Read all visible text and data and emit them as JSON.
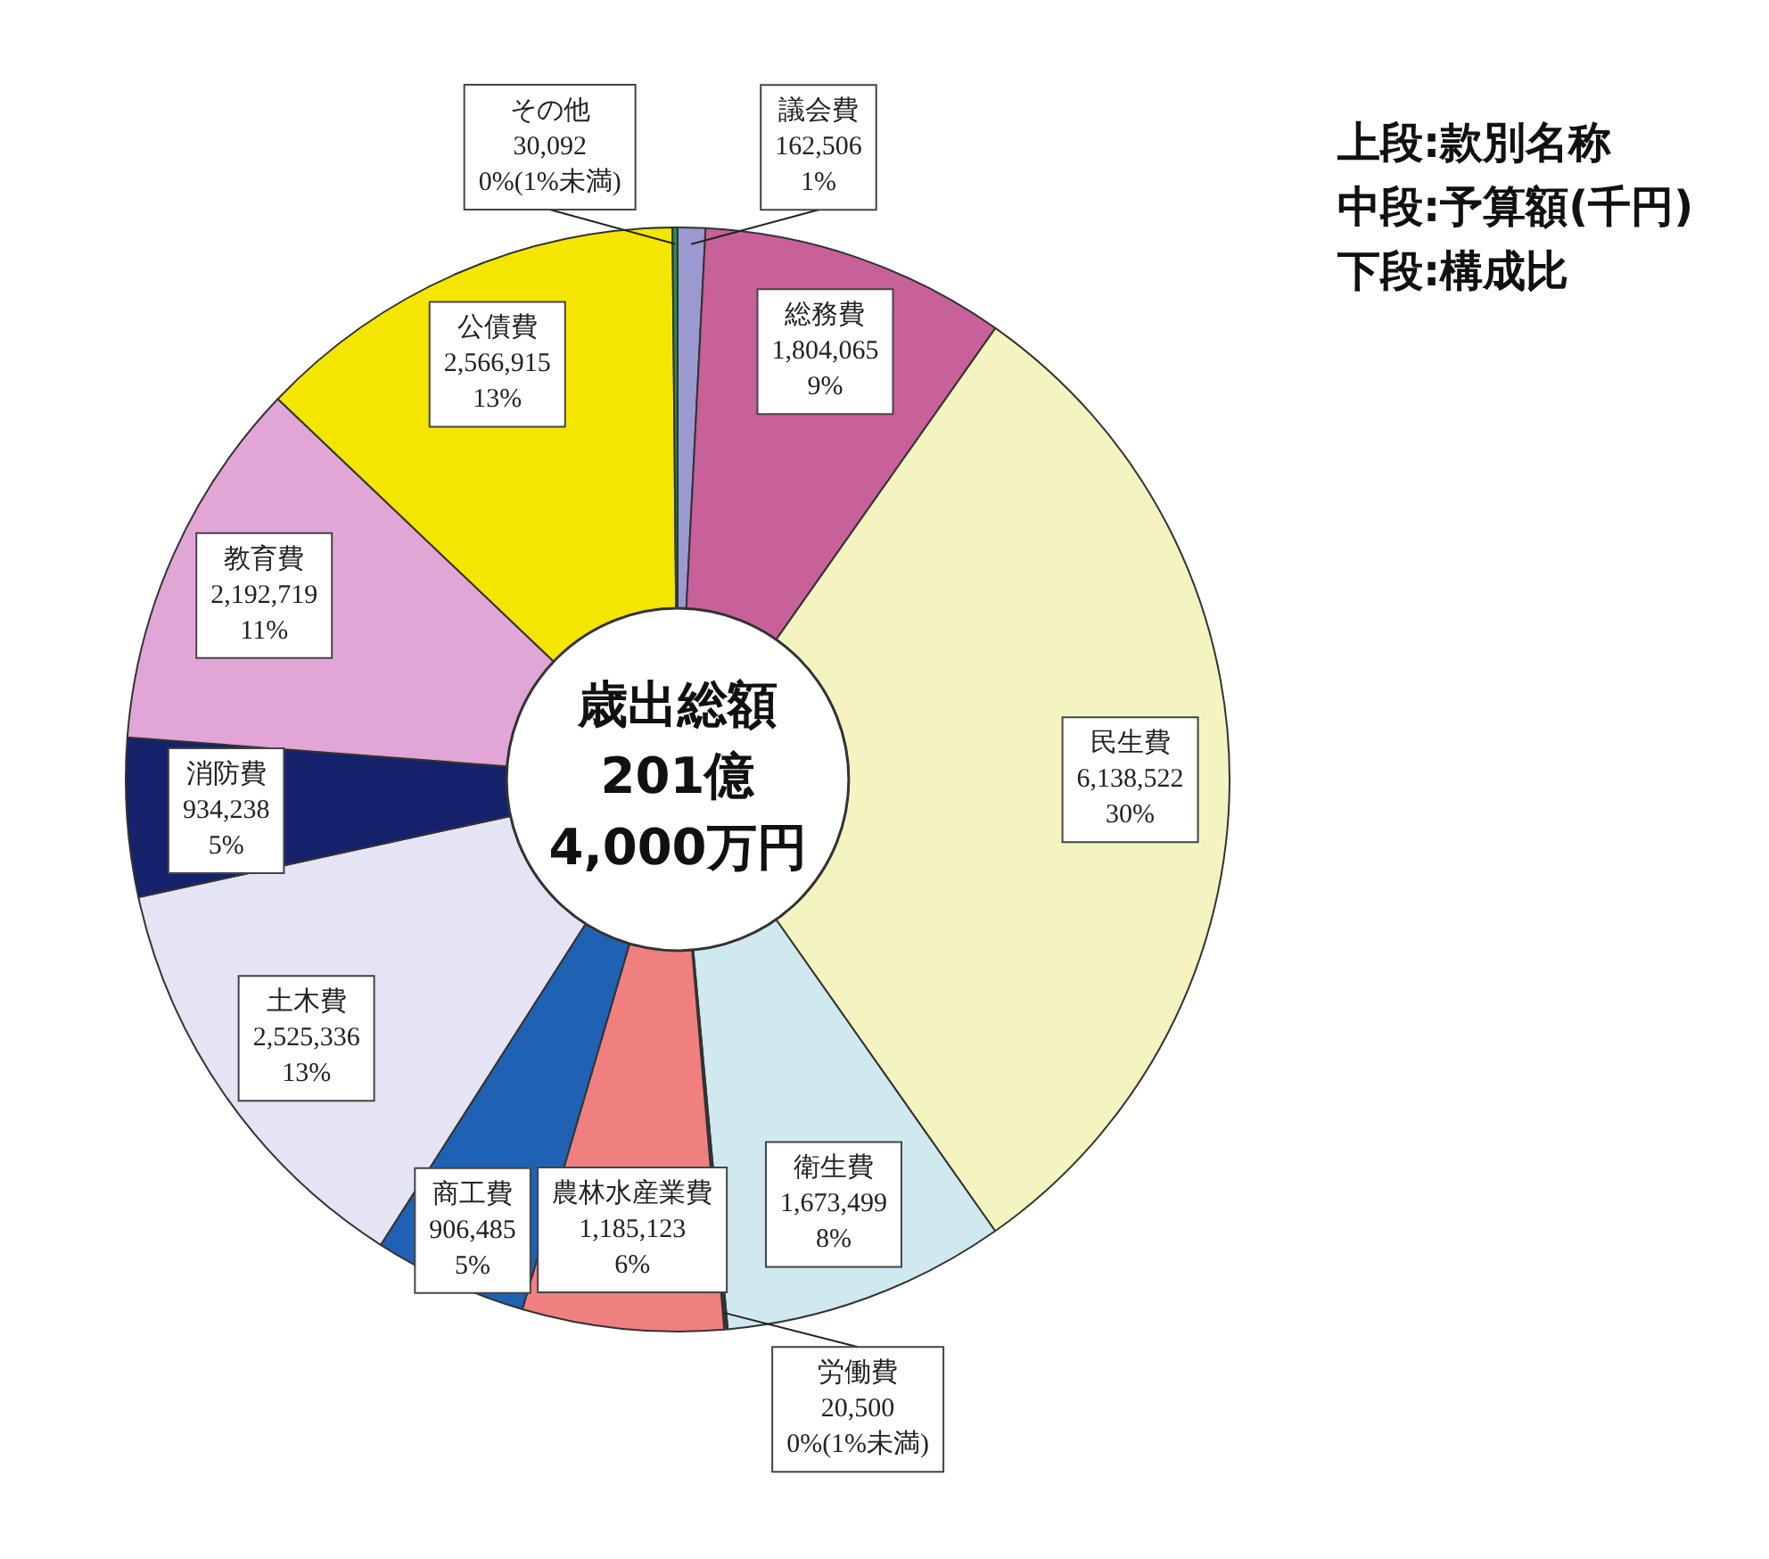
{
  "chart_data": {
    "type": "donut",
    "categories": [
      "議会費",
      "総務費",
      "民生費",
      "衛生費",
      "労働費",
      "農林水産業費",
      "商工費",
      "土木費",
      "消防費",
      "教育費",
      "公債費",
      "その他"
    ],
    "values": [
      162506,
      1804065,
      6138522,
      1673499,
      20500,
      1185123,
      906485,
      2525336,
      934238,
      2192719,
      2566915,
      30092
    ],
    "value_labels": [
      "162,506\n1%",
      "1,804,065\n9%",
      "6,138,522\n30%",
      "1,673,499\n8%",
      "20,500\n0%(1%未満)",
      "1,185,123\n6%",
      "906,485\n5%",
      "2,525,336\n13%",
      "934,238\n5%",
      "2,192,719\n11%",
      "2,566,915\n13%",
      "30,092\n0%(1%未満)"
    ],
    "colors": [
      "#9a9ad0",
      "#c8609a",
      "#f4f4c0",
      "#cfe9ef",
      "#2a3a3a",
      "#f08080",
      "#1f62b4",
      "#e4e4f4",
      "#15216a",
      "#e2a6d6",
      "#f4e600",
      "#2e8b57"
    ],
    "annotations": [
      "歳出総額\n201億\n4,000万円",
      "上段:款別名称",
      "中段:予算額(千円)",
      "下段:構成比"
    ],
    "legend": false
  }
}
